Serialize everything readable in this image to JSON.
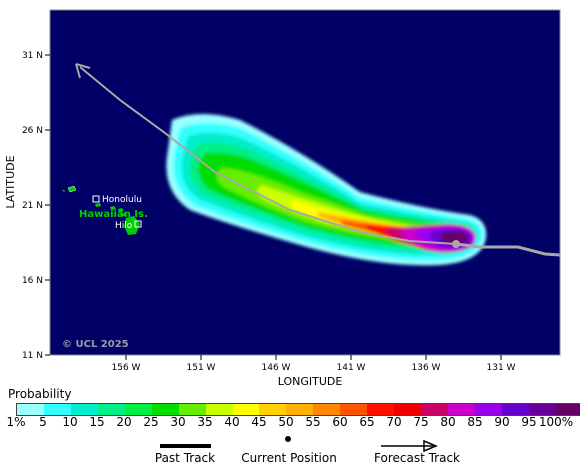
{
  "map": {
    "axis_x_title": "LONGITUDE",
    "axis_y_title": "LATITUDE",
    "lat_ticks": [
      "31 N",
      "26 N",
      "21 N",
      "16 N",
      "11 N"
    ],
    "lon_ticks": [
      "156 W",
      "151 W",
      "146 W",
      "141 W",
      "136 W",
      "131 W"
    ],
    "ocean_color": "#000066",
    "copyright": "© UCL 2025",
    "islands_name": "Hawaiian Is.",
    "city_honolulu": "Honolulu",
    "city_hilo": "Hilo"
  },
  "legend": {
    "title": "Probability",
    "labels": [
      "1%",
      "5",
      "10",
      "15",
      "20",
      "25",
      "30",
      "35",
      "40",
      "45",
      "50",
      "55",
      "60",
      "65",
      "70",
      "75",
      "80",
      "85",
      "90",
      "95",
      "100%"
    ],
    "colors": [
      "#99ffff",
      "#33ffff",
      "#00eecc",
      "#00ee88",
      "#00ee44",
      "#00dd00",
      "#66ee00",
      "#ccff00",
      "#ffff00",
      "#ffd000",
      "#ffb000",
      "#ff8800",
      "#ff5500",
      "#ff1100",
      "#ee0000",
      "#cc0066",
      "#cc00cc",
      "#9900ee",
      "#6600cc",
      "#660099",
      "#660066"
    ],
    "past_track_label": "Past Track",
    "current_position_label": "Current Position",
    "forecast_track_label": "Forecast Track"
  }
}
